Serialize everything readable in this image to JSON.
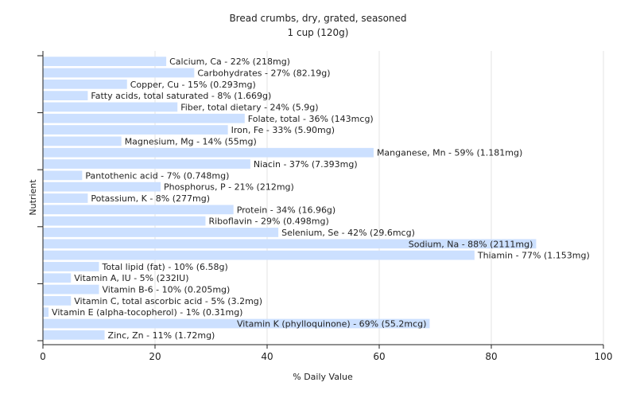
{
  "chart_data": {
    "type": "bar",
    "orientation": "horizontal",
    "title": "Bread crumbs, dry, grated, seasoned",
    "subtitle": "1 cup (120g)",
    "xlabel": "% Daily Value",
    "ylabel": "Nutrient",
    "xlim": [
      0,
      100
    ],
    "xticks": [
      0,
      20,
      40,
      60,
      80,
      100
    ],
    "grid": true,
    "bar_color": "#cce0ff",
    "categories": [
      "Calcium, Ca",
      "Carbohydrates",
      "Copper, Cu",
      "Fatty acids, total saturated",
      "Fiber, total dietary",
      "Folate, total",
      "Iron, Fe",
      "Magnesium, Mg",
      "Manganese, Mn",
      "Niacin",
      "Pantothenic acid",
      "Phosphorus, P",
      "Potassium, K",
      "Protein",
      "Riboflavin",
      "Selenium, Se",
      "Sodium, Na",
      "Thiamin",
      "Total lipid (fat)",
      "Vitamin A, IU",
      "Vitamin B-6",
      "Vitamin C, total ascorbic acid",
      "Vitamin E (alpha-tocopherol)",
      "Vitamin K (phylloquinone)",
      "Zinc, Zn"
    ],
    "values": [
      22,
      27,
      15,
      8,
      24,
      36,
      33,
      14,
      59,
      37,
      7,
      21,
      8,
      34,
      29,
      42,
      88,
      77,
      10,
      5,
      10,
      5,
      1,
      69,
      11
    ],
    "labels": [
      "Calcium, Ca - 22% (218mg)",
      "Carbohydrates - 27% (82.19g)",
      "Copper, Cu - 15% (0.293mg)",
      "Fatty acids, total saturated - 8% (1.669g)",
      "Fiber, total dietary - 24% (5.9g)",
      "Folate, total - 36% (143mcg)",
      "Iron, Fe - 33% (5.90mg)",
      "Magnesium, Mg - 14% (55mg)",
      "Manganese, Mn - 59% (1.181mg)",
      "Niacin - 37% (7.393mg)",
      "Pantothenic acid - 7% (0.748mg)",
      "Phosphorus, P - 21% (212mg)",
      "Potassium, K - 8% (277mg)",
      "Protein - 34% (16.96g)",
      "Riboflavin - 29% (0.498mg)",
      "Selenium, Se - 42% (29.6mcg)",
      "Sodium, Na - 88% (2111mg)",
      "Thiamin - 77% (1.153mg)",
      "Total lipid (fat) - 10% (6.58g)",
      "Vitamin A, IU - 5% (232IU)",
      "Vitamin B-6 - 10% (0.205mg)",
      "Vitamin C, total ascorbic acid - 5% (3.2mg)",
      "Vitamin E (alpha-tocopherol) - 1% (0.31mg)",
      "Vitamin K (phylloquinone) - 69% (55.2mcg)",
      "Zinc, Zn - 11% (1.72mg)"
    ]
  }
}
